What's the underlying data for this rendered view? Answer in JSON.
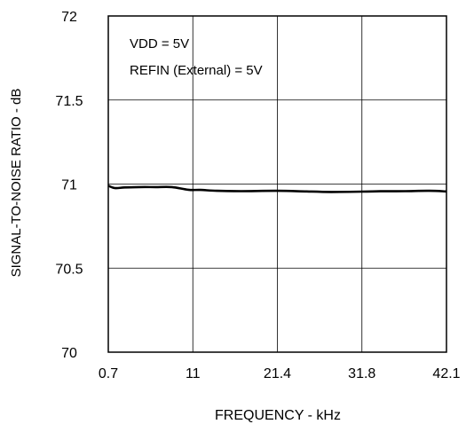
{
  "chart_data": {
    "type": "line",
    "title": "",
    "xlabel": "FREQUENCY - kHz",
    "ylabel": "SIGNAL-TO-NOISE RATIO - dB",
    "x_ticks": [
      "0.7",
      "11",
      "21.4",
      "31.8",
      "42.1"
    ],
    "y_ticks": [
      "72",
      "71.5",
      "71",
      "70.5",
      "70"
    ],
    "xlim": [
      0.7,
      42.1
    ],
    "ylim": [
      70,
      72
    ],
    "grid": true,
    "annotations": [
      "VDD = 5V",
      "REFIN (External) = 5V"
    ],
    "series": [
      {
        "x": [
          0.7,
          1.5,
          2.7,
          4.5,
          6.5,
          8.5,
          10.5,
          12,
          14,
          17,
          21.4,
          25,
          28,
          31.8,
          34,
          37,
          40,
          42.1
        ],
        "y": [
          70.99,
          70.976,
          70.98,
          70.982,
          70.982,
          70.982,
          70.966,
          70.965,
          70.96,
          70.958,
          70.96,
          70.956,
          70.953,
          70.955,
          70.957,
          70.958,
          70.96,
          70.956
        ]
      }
    ]
  },
  "colors": {
    "line": "#000000",
    "grid": "#000000",
    "background": "#ffffff"
  }
}
